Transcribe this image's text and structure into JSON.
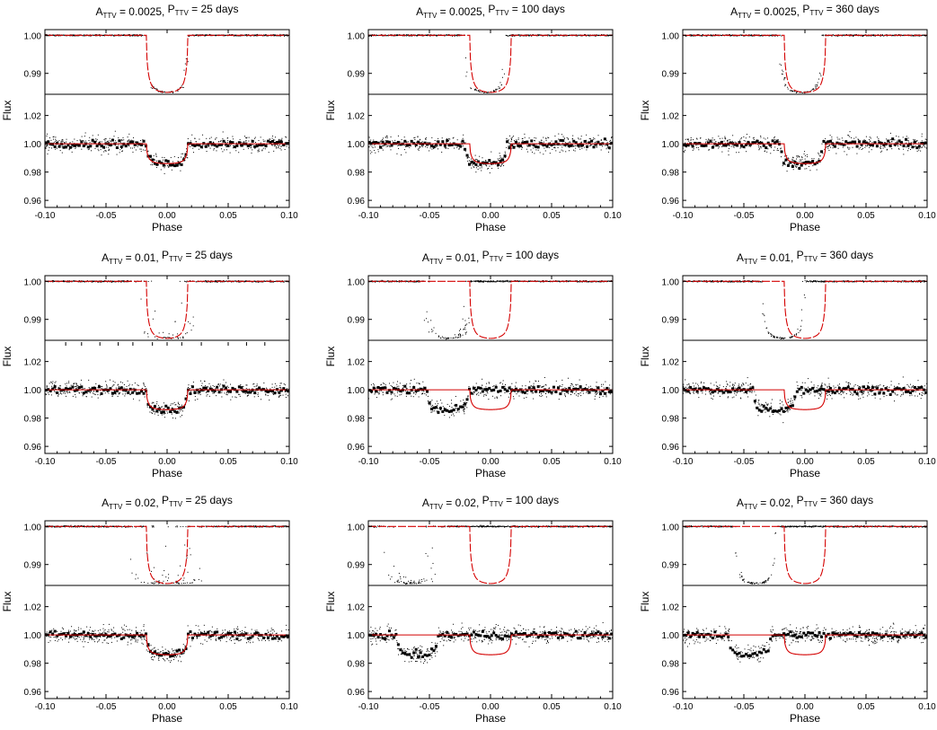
{
  "figure": {
    "xlabel": "Phase",
    "ylabel": "Flux",
    "x_ticks": [
      "-0.10",
      "-0.05",
      "0.00",
      "0.05",
      "0.10"
    ],
    "top_y_ticks": [
      "1.00",
      "0.99"
    ],
    "bottom_y_ticks": [
      "1.02",
      "1.00",
      "0.98",
      "0.96"
    ],
    "colors": {
      "model": "#d40000",
      "data": "#000000",
      "axes": "#000000"
    }
  },
  "chart_data": [
    {
      "type": "scatter",
      "title": "A_TTV = 0.0025, P_TTV = 25 days",
      "attv": 0.0025,
      "pttv_days": 25,
      "title_parts": {
        "a": "A",
        "a_sub": "TTV",
        "a_val": " = 0.0025, ",
        "p": "P",
        "p_sub": "TTV",
        "p_val": " = 25 days"
      },
      "xlim": [
        -0.1,
        0.1
      ],
      "top_ylim": [
        0.9845,
        1.0015
      ],
      "bottom_ylim": [
        0.955,
        1.035
      ],
      "transit_half_width": 0.017,
      "transit_depth": 0.015,
      "binned_dip_center": 0.0,
      "top_data_offsets": [
        0.0
      ],
      "top_data_spread": 0.002
    },
    {
      "type": "scatter",
      "title": "A_TTV = 0.0025, P_TTV = 100 days",
      "attv": 0.0025,
      "pttv_days": 100,
      "title_parts": {
        "a": "A",
        "a_sub": "TTV",
        "a_val": " = 0.0025, ",
        "p": "P",
        "p_sub": "TTV",
        "p_val": " = 100 days"
      },
      "xlim": [
        -0.1,
        0.1
      ],
      "top_ylim": [
        0.9845,
        1.0015
      ],
      "bottom_ylim": [
        0.955,
        1.035
      ],
      "transit_half_width": 0.017,
      "transit_depth": 0.015,
      "binned_dip_center": -0.004,
      "top_data_offsets": [
        -0.004
      ],
      "top_data_spread": 0.002
    },
    {
      "type": "scatter",
      "title": "A_TTV = 0.0025, P_TTV = 360 days",
      "attv": 0.0025,
      "pttv_days": 360,
      "title_parts": {
        "a": "A",
        "a_sub": "TTV",
        "a_val": " = 0.0025, ",
        "p": "P",
        "p_sub": "TTV",
        "p_val": " = 360 days"
      },
      "xlim": [
        -0.1,
        0.1
      ],
      "top_ylim": [
        0.9845,
        1.0015
      ],
      "bottom_ylim": [
        0.955,
        1.035
      ],
      "transit_half_width": 0.017,
      "transit_depth": 0.015,
      "binned_dip_center": -0.003,
      "top_data_offsets": [
        -0.003
      ],
      "top_data_spread": 0.0015
    },
    {
      "type": "scatter",
      "title": "A_TTV = 0.01, P_TTV = 25 days",
      "attv": 0.01,
      "pttv_days": 25,
      "title_parts": {
        "a": "A",
        "a_sub": "TTV",
        "a_val": " = 0.01, ",
        "p": "P",
        "p_sub": "TTV",
        "p_val": " = 25 days"
      },
      "xlim": [
        -0.1,
        0.1
      ],
      "top_ylim": [
        0.9845,
        1.0015
      ],
      "bottom_ylim": [
        0.955,
        1.035
      ],
      "transit_half_width": 0.017,
      "transit_depth": 0.015,
      "binned_dip_center": 0.0,
      "top_data_offsets": [
        -0.006,
        0.006
      ],
      "top_data_spread": 0.004
    },
    {
      "type": "scatter",
      "title": "A_TTV = 0.01, P_TTV = 100 days",
      "attv": 0.01,
      "pttv_days": 100,
      "title_parts": {
        "a": "A",
        "a_sub": "TTV",
        "a_val": " = 0.01, ",
        "p": "P",
        "p_sub": "TTV",
        "p_val": " = 100 days"
      },
      "xlim": [
        -0.1,
        0.1
      ],
      "top_ylim": [
        0.9845,
        1.0015
      ],
      "bottom_ylim": [
        0.955,
        1.035
      ],
      "transit_half_width": 0.017,
      "transit_depth": 0.015,
      "binned_dip_center": -0.035,
      "top_data_offsets": [
        -0.035
      ],
      "top_data_spread": 0.004
    },
    {
      "type": "scatter",
      "title": "A_TTV = 0.01, P_TTV = 360 days",
      "attv": 0.01,
      "pttv_days": 360,
      "title_parts": {
        "a": "A",
        "a_sub": "TTV",
        "a_val": " = 0.01, ",
        "p": "P",
        "p_sub": "TTV",
        "p_val": " = 360 days"
      },
      "xlim": [
        -0.1,
        0.1
      ],
      "top_ylim": [
        0.9845,
        1.0015
      ],
      "bottom_ylim": [
        0.955,
        1.035
      ],
      "transit_half_width": 0.017,
      "transit_depth": 0.015,
      "binned_dip_center": -0.025,
      "top_data_offsets": [
        -0.018
      ],
      "top_data_spread": 0.0015
    },
    {
      "type": "scatter",
      "title": "A_TTV = 0.02, P_TTV = 25 days",
      "attv": 0.02,
      "pttv_days": 25,
      "title_parts": {
        "a": "A",
        "a_sub": "TTV",
        "a_val": " = 0.02, ",
        "p": "P",
        "p_sub": "TTV",
        "p_val": " = 25 days"
      },
      "xlim": [
        -0.1,
        0.1
      ],
      "top_ylim": [
        0.9845,
        1.0015
      ],
      "bottom_ylim": [
        0.955,
        1.035
      ],
      "transit_half_width": 0.017,
      "transit_depth": 0.015,
      "binned_dip_center": 0.0,
      "top_data_offsets": [
        -0.012,
        0.0,
        0.012
      ],
      "top_data_spread": 0.005
    },
    {
      "type": "scatter",
      "title": "A_TTV = 0.02, P_TTV = 100 days",
      "attv": 0.02,
      "pttv_days": 100,
      "title_parts": {
        "a": "A",
        "a_sub": "TTV",
        "a_val": " = 0.02, ",
        "p": "P",
        "p_sub": "TTV",
        "p_val": " = 100 days"
      },
      "xlim": [
        -0.1,
        0.1
      ],
      "top_ylim": [
        0.9845,
        1.0015
      ],
      "bottom_ylim": [
        0.955,
        1.035
      ],
      "transit_half_width": 0.017,
      "transit_depth": 0.015,
      "binned_dip_center": -0.06,
      "top_data_offsets": [
        -0.065
      ],
      "top_data_spread": 0.008
    },
    {
      "type": "scatter",
      "title": "A_TTV = 0.02, P_TTV = 360 days",
      "attv": 0.02,
      "pttv_days": 360,
      "title_parts": {
        "a": "A",
        "a_sub": "TTV",
        "a_val": " = 0.02, ",
        "p": "P",
        "p_sub": "TTV",
        "p_val": " = 360 days"
      },
      "xlim": [
        -0.1,
        0.1
      ],
      "top_ylim": [
        0.9845,
        1.0015
      ],
      "bottom_ylim": [
        0.955,
        1.035
      ],
      "transit_half_width": 0.017,
      "transit_depth": 0.015,
      "binned_dip_center": -0.045,
      "top_data_offsets": [
        -0.04
      ],
      "top_data_spread": 0.0015
    }
  ]
}
